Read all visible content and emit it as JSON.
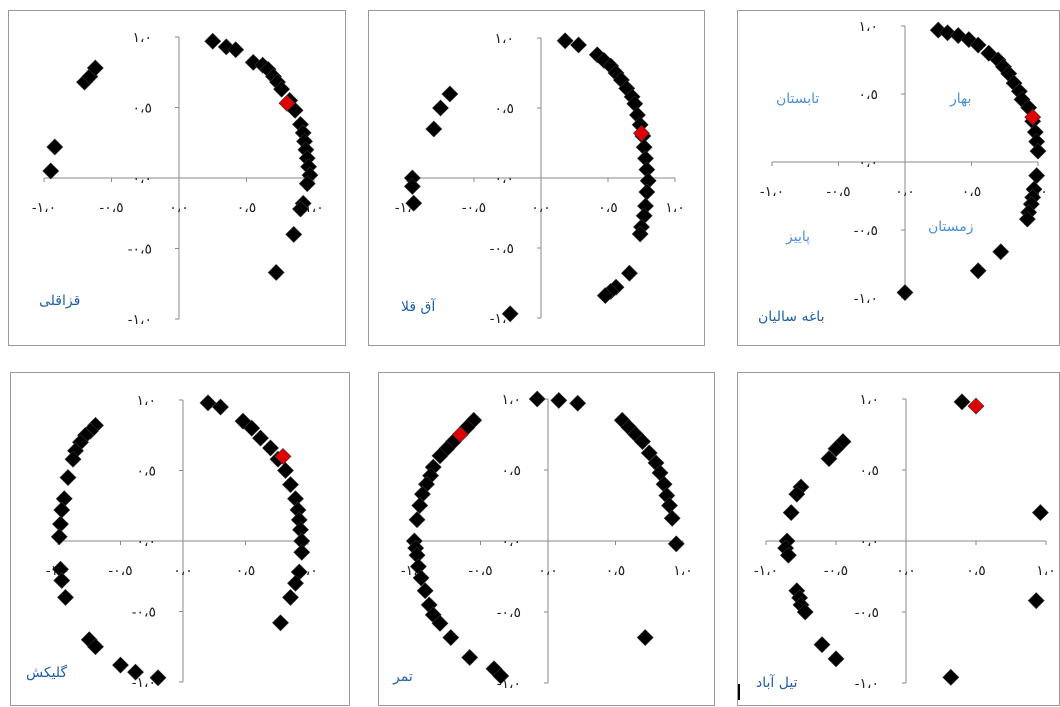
{
  "colors": {
    "marker": "#000000",
    "highlight": "#e00000",
    "axis": "#8a8a8a",
    "season_label": "#4a90d9",
    "station_label": "#1f5fa8"
  },
  "tick_text": {
    "one": "١،٠",
    "half": "٠،٥",
    "zero": "٠،٠",
    "neg_half": "-٠،٥",
    "neg_one": "-١،٠"
  },
  "chart_data": [
    {
      "type": "scatter",
      "title": "قزاقلی",
      "xlim": [
        -1,
        1
      ],
      "ylim": [
        -1,
        1
      ],
      "points": [
        [
          -0.92,
          0.22
        ],
        [
          -0.95,
          0.05
        ],
        [
          -0.7,
          0.68
        ],
        [
          -0.66,
          0.72
        ],
        [
          -0.62,
          0.78
        ],
        [
          0.25,
          0.97
        ],
        [
          0.35,
          0.93
        ],
        [
          0.42,
          0.91
        ],
        [
          0.55,
          0.82
        ],
        [
          0.62,
          0.8
        ],
        [
          0.66,
          0.77
        ],
        [
          0.7,
          0.72
        ],
        [
          0.73,
          0.68
        ],
        [
          0.76,
          0.63
        ],
        [
          0.82,
          0.55
        ],
        [
          0.86,
          0.48
        ],
        [
          0.9,
          0.38
        ],
        [
          0.92,
          0.32
        ],
        [
          0.93,
          0.26
        ],
        [
          0.94,
          0.2
        ],
        [
          0.95,
          0.14
        ],
        [
          0.96,
          0.08
        ],
        [
          0.97,
          0.02
        ],
        [
          0.95,
          -0.04
        ],
        [
          0.92,
          -0.18
        ],
        [
          0.9,
          -0.22
        ],
        [
          0.85,
          -0.4
        ],
        [
          0.72,
          -0.67
        ]
      ],
      "highlight": [
        [
          0.8,
          0.53
        ]
      ],
      "station_label": "قزاقلی"
    },
    {
      "type": "scatter",
      "title": "آق قلا",
      "xlim": [
        -1,
        1
      ],
      "ylim": [
        -1,
        1
      ],
      "points": [
        [
          -0.68,
          0.6
        ],
        [
          -0.75,
          0.5
        ],
        [
          -0.8,
          0.35
        ],
        [
          -0.96,
          0.0
        ],
        [
          -0.96,
          -0.06
        ],
        [
          -0.95,
          -0.18
        ],
        [
          -0.23,
          -0.97
        ],
        [
          0.18,
          0.98
        ],
        [
          0.28,
          0.95
        ],
        [
          0.42,
          0.88
        ],
        [
          0.47,
          0.84
        ],
        [
          0.52,
          0.8
        ],
        [
          0.56,
          0.75
        ],
        [
          0.6,
          0.7
        ],
        [
          0.64,
          0.64
        ],
        [
          0.68,
          0.58
        ],
        [
          0.7,
          0.53
        ],
        [
          0.72,
          0.45
        ],
        [
          0.74,
          0.38
        ],
        [
          0.76,
          0.3
        ],
        [
          0.77,
          0.22
        ],
        [
          0.78,
          0.14
        ],
        [
          0.79,
          0.06
        ],
        [
          0.8,
          -0.02
        ],
        [
          0.79,
          -0.1
        ],
        [
          0.78,
          -0.2
        ],
        [
          0.77,
          -0.27
        ],
        [
          0.75,
          -0.35
        ],
        [
          0.74,
          -0.4
        ],
        [
          0.66,
          -0.68
        ],
        [
          0.56,
          -0.78
        ],
        [
          0.52,
          -0.81
        ],
        [
          0.48,
          -0.84
        ]
      ],
      "highlight": [
        [
          0.75,
          0.32
        ]
      ],
      "station_label": "آق قلا"
    },
    {
      "type": "scatter",
      "title": "باغه سالیان",
      "xlim": [
        -1,
        1
      ],
      "ylim": [
        -1,
        1
      ],
      "points": [
        [
          0.25,
          0.97
        ],
        [
          0.32,
          0.95
        ],
        [
          0.4,
          0.93
        ],
        [
          0.48,
          0.9
        ],
        [
          0.55,
          0.86
        ],
        [
          0.63,
          0.8
        ],
        [
          0.7,
          0.75
        ],
        [
          0.74,
          0.7
        ],
        [
          0.78,
          0.65
        ],
        [
          0.82,
          0.58
        ],
        [
          0.86,
          0.52
        ],
        [
          0.88,
          0.46
        ],
        [
          0.93,
          0.4
        ],
        [
          0.96,
          0.3
        ],
        [
          0.98,
          0.22
        ],
        [
          0.99,
          0.15
        ],
        [
          1.0,
          0.08
        ],
        [
          0.99,
          -0.1
        ],
        [
          0.97,
          -0.2
        ],
        [
          0.96,
          -0.26
        ],
        [
          0.95,
          -0.31
        ],
        [
          0.93,
          -0.37
        ],
        [
          0.92,
          -0.42
        ],
        [
          0.72,
          -0.66
        ],
        [
          0.55,
          -0.8
        ],
        [
          0.0,
          -0.96
        ]
      ],
      "highlight": [
        [
          0.96,
          0.33
        ]
      ],
      "quadrant_labels": [
        "بهار",
        "تابستان",
        "زمستان",
        "پاییز"
      ],
      "station_label": "باغه سالیان"
    },
    {
      "type": "scatter",
      "title": "گلیکش",
      "xlim": [
        -1,
        1
      ],
      "ylim": [
        -1,
        1
      ],
      "points": [
        [
          -0.7,
          0.82
        ],
        [
          -0.74,
          0.78
        ],
        [
          -0.78,
          0.75
        ],
        [
          -0.82,
          0.7
        ],
        [
          -0.86,
          0.64
        ],
        [
          -0.88,
          0.58
        ],
        [
          -0.92,
          0.45
        ],
        [
          -0.95,
          0.3
        ],
        [
          -0.97,
          0.22
        ],
        [
          -0.98,
          0.12
        ],
        [
          -0.99,
          0.03
        ],
        [
          -0.98,
          -0.2
        ],
        [
          -0.97,
          -0.28
        ],
        [
          -0.94,
          -0.4
        ],
        [
          -0.75,
          -0.7
        ],
        [
          -0.7,
          -0.75
        ],
        [
          -0.5,
          -0.88
        ],
        [
          -0.38,
          -0.93
        ],
        [
          -0.2,
          -0.97
        ],
        [
          0.2,
          0.98
        ],
        [
          0.3,
          0.95
        ],
        [
          0.48,
          0.85
        ],
        [
          0.55,
          0.8
        ],
        [
          0.62,
          0.73
        ],
        [
          0.7,
          0.66
        ],
        [
          0.76,
          0.58
        ],
        [
          0.82,
          0.5
        ],
        [
          0.86,
          0.4
        ],
        [
          0.9,
          0.3
        ],
        [
          0.92,
          0.22
        ],
        [
          0.93,
          0.15
        ],
        [
          0.94,
          0.08
        ],
        [
          0.95,
          0.0
        ],
        [
          0.95,
          -0.08
        ],
        [
          0.93,
          -0.22
        ],
        [
          0.9,
          -0.3
        ],
        [
          0.86,
          -0.4
        ],
        [
          0.78,
          -0.58
        ]
      ],
      "highlight": [
        [
          0.8,
          0.6
        ]
      ],
      "station_label": "گلیکش"
    },
    {
      "type": "scatter",
      "title": "تمر",
      "xlim": [
        -1,
        1
      ],
      "ylim": [
        -1,
        1
      ],
      "points": [
        [
          -0.08,
          1.0
        ],
        [
          0.08,
          0.99
        ],
        [
          0.22,
          0.97
        ],
        [
          -0.55,
          0.85
        ],
        [
          -0.6,
          0.8
        ],
        [
          -0.7,
          0.7
        ],
        [
          -0.75,
          0.65
        ],
        [
          -0.8,
          0.6
        ],
        [
          -0.85,
          0.52
        ],
        [
          -0.87,
          0.46
        ],
        [
          -0.9,
          0.4
        ],
        [
          -0.93,
          0.33
        ],
        [
          -0.95,
          0.25
        ],
        [
          -0.97,
          0.15
        ],
        [
          -0.99,
          0.0
        ],
        [
          -0.98,
          -0.05
        ],
        [
          -0.97,
          -0.1
        ],
        [
          -0.96,
          -0.18
        ],
        [
          -0.94,
          -0.26
        ],
        [
          -0.91,
          -0.35
        ],
        [
          -0.88,
          -0.45
        ],
        [
          -0.85,
          -0.52
        ],
        [
          -0.8,
          -0.58
        ],
        [
          -0.72,
          -0.68
        ],
        [
          -0.58,
          -0.82
        ],
        [
          -0.4,
          -0.9
        ],
        [
          -0.35,
          -0.95
        ],
        [
          0.55,
          0.85
        ],
        [
          0.6,
          0.8
        ],
        [
          0.65,
          0.75
        ],
        [
          0.7,
          0.7
        ],
        [
          0.75,
          0.62
        ],
        [
          0.8,
          0.55
        ],
        [
          0.83,
          0.48
        ],
        [
          0.86,
          0.4
        ],
        [
          0.88,
          0.32
        ],
        [
          0.9,
          0.25
        ],
        [
          0.92,
          0.16
        ],
        [
          0.95,
          -0.02
        ],
        [
          0.72,
          -0.68
        ]
      ],
      "highlight": [
        [
          -0.65,
          0.75
        ]
      ],
      "station_label": "تمر"
    },
    {
      "type": "scatter",
      "title": "تیل آباد",
      "xlim": [
        -1,
        1
      ],
      "ylim": [
        -1,
        1
      ],
      "points": [
        [
          0.4,
          0.98
        ],
        [
          -0.45,
          0.7
        ],
        [
          -0.5,
          0.65
        ],
        [
          -0.55,
          0.58
        ],
        [
          -0.75,
          0.38
        ],
        [
          -0.78,
          0.33
        ],
        [
          -0.82,
          0.2
        ],
        [
          -0.85,
          0.0
        ],
        [
          -0.86,
          -0.05
        ],
        [
          -0.84,
          -0.1
        ],
        [
          -0.78,
          -0.35
        ],
        [
          -0.76,
          -0.4
        ],
        [
          -0.75,
          -0.45
        ],
        [
          -0.72,
          -0.5
        ],
        [
          -0.6,
          -0.73
        ],
        [
          -0.5,
          -0.83
        ],
        [
          0.32,
          -0.96
        ],
        [
          0.96,
          0.2
        ],
        [
          0.93,
          -0.42
        ]
      ],
      "highlight": [
        [
          0.5,
          0.95
        ]
      ],
      "station_label": "تیل آباد"
    }
  ]
}
